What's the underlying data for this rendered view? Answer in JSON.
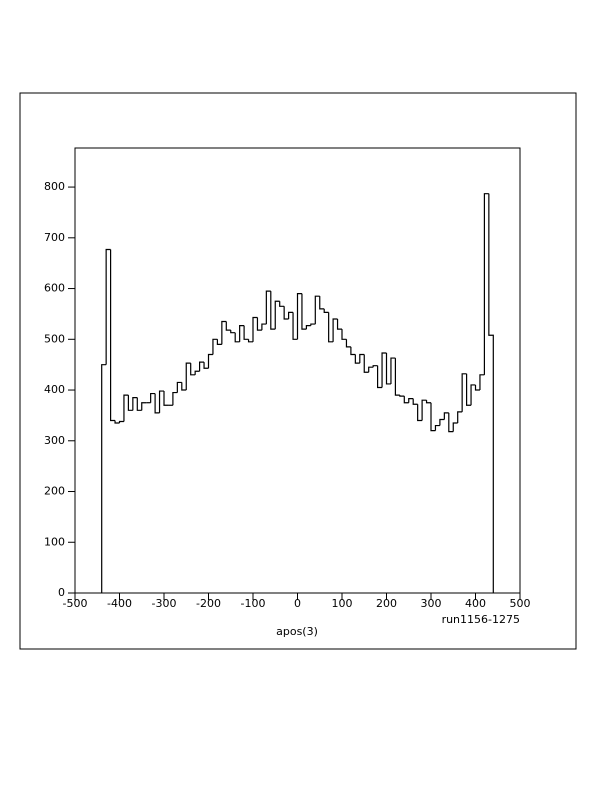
{
  "chart_data": {
    "type": "histogram",
    "x_label": "apos(3)",
    "annotation": "run1156-1275",
    "bins": [
      -440,
      -430,
      -420,
      -410,
      -400,
      -390,
      -380,
      -370,
      -360,
      -350,
      -340,
      -330,
      -320,
      -310,
      -300,
      -290,
      -280,
      -270,
      -260,
      -250,
      -240,
      -230,
      -220,
      -210,
      -200,
      -190,
      -180,
      -170,
      -160,
      -150,
      -140,
      -130,
      -120,
      -110,
      -100,
      -90,
      -80,
      -70,
      -60,
      -50,
      -40,
      -30,
      -20,
      -10,
      0,
      10,
      20,
      30,
      40,
      50,
      60,
      70,
      80,
      90,
      100,
      110,
      120,
      130,
      140,
      150,
      160,
      170,
      180,
      190,
      200,
      210,
      220,
      230,
      240,
      250,
      260,
      270,
      280,
      290,
      300,
      310,
      320,
      330,
      340,
      350,
      360,
      370,
      380,
      390,
      400,
      410,
      420,
      430,
      440
    ],
    "values": [
      450,
      677,
      340,
      335,
      338,
      390,
      360,
      385,
      360,
      375,
      375,
      393,
      355,
      398,
      370,
      370,
      395,
      415,
      400,
      453,
      430,
      437,
      455,
      443,
      470,
      500,
      490,
      535,
      518,
      513,
      495,
      527,
      500,
      495,
      543,
      518,
      530,
      595,
      520,
      575,
      565,
      540,
      553,
      500,
      590,
      520,
      527,
      530,
      585,
      560,
      553,
      495,
      540,
      520,
      500,
      485,
      470,
      453,
      470,
      435,
      445,
      448,
      405,
      473,
      412,
      463,
      390,
      388,
      375,
      383,
      372,
      340,
      380,
      375,
      320,
      330,
      342,
      355,
      318,
      335,
      357,
      432,
      370,
      410,
      400,
      430,
      787,
      508
    ],
    "color": "#000000",
    "xlim": [
      -500,
      500
    ],
    "xticks": [
      -500,
      -400,
      -300,
      -200,
      -100,
      0,
      100,
      200,
      300,
      400,
      500
    ],
    "ylim": [
      0,
      877
    ],
    "yticks": [
      0,
      100,
      200,
      300,
      400,
      500,
      600,
      700,
      800
    ]
  }
}
